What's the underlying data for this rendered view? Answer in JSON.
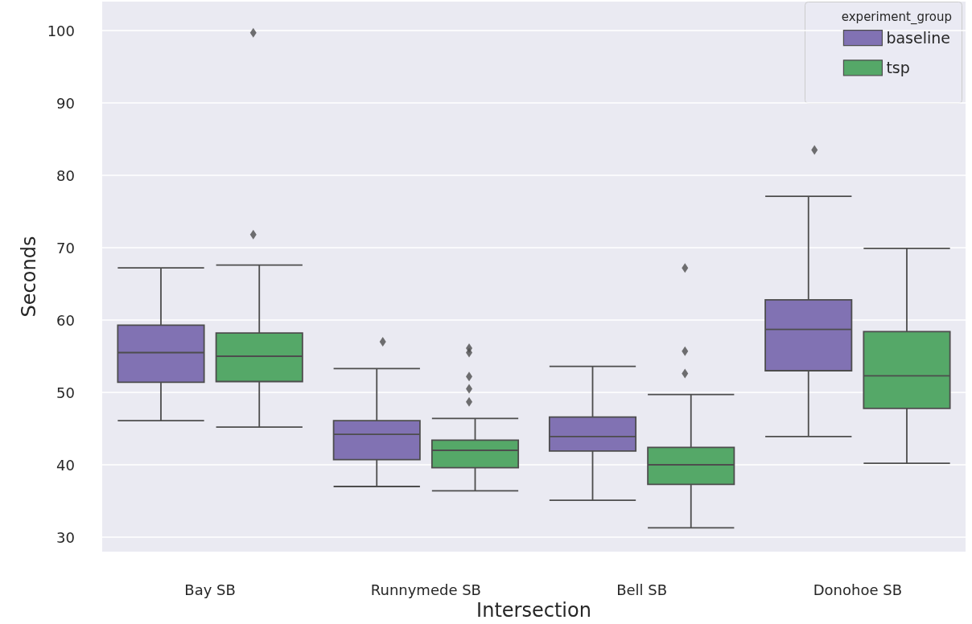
{
  "chart_data": {
    "type": "box",
    "xlabel": "Intersection",
    "ylabel": "Seconds",
    "legend_title": "experiment_group",
    "legend": "top right",
    "grid": "y",
    "marker": "diamond",
    "categories": [
      "Bay SB",
      "Runnymede SB",
      "Bell SB",
      "Donohoe SB"
    ],
    "ylim": [
      28,
      104
    ],
    "yticks": [
      30,
      40,
      50,
      60,
      70,
      80,
      90,
      100
    ],
    "series": [
      {
        "name": "baseline",
        "color": "#8172b3",
        "boxes": [
          {
            "low": 46.1,
            "q1": 51.4,
            "median": 55.5,
            "q3": 59.3,
            "high": 67.2
          },
          {
            "low": 37.0,
            "q1": 40.7,
            "median": 44.2,
            "q3": 46.1,
            "high": 53.3,
            "outliers": [
              57.0
            ]
          },
          {
            "low": 35.1,
            "q1": 41.9,
            "median": 43.9,
            "q3": 46.6,
            "high": 53.6
          },
          {
            "low": 43.9,
            "q1": 53.0,
            "median": 58.7,
            "q3": 62.8,
            "high": 77.1,
            "outliers": [
              83.5
            ]
          }
        ]
      },
      {
        "name": "tsp",
        "color": "#55a868",
        "boxes": [
          {
            "low": 45.2,
            "q1": 51.5,
            "median": 55.0,
            "q3": 58.2,
            "high": 67.6,
            "outliers": [
              71.8,
              99.7
            ]
          },
          {
            "low": 36.4,
            "q1": 39.6,
            "median": 42.0,
            "q3": 43.4,
            "high": 46.4,
            "outliers": [
              48.7,
              50.5,
              52.2,
              55.5,
              56.1
            ]
          },
          {
            "low": 31.3,
            "q1": 37.3,
            "median": 40.0,
            "q3": 42.4,
            "high": 49.7,
            "outliers": [
              52.6,
              55.7,
              67.2
            ]
          },
          {
            "low": 40.2,
            "q1": 47.8,
            "median": 52.3,
            "q3": 58.4,
            "high": 69.9
          }
        ]
      }
    ]
  }
}
